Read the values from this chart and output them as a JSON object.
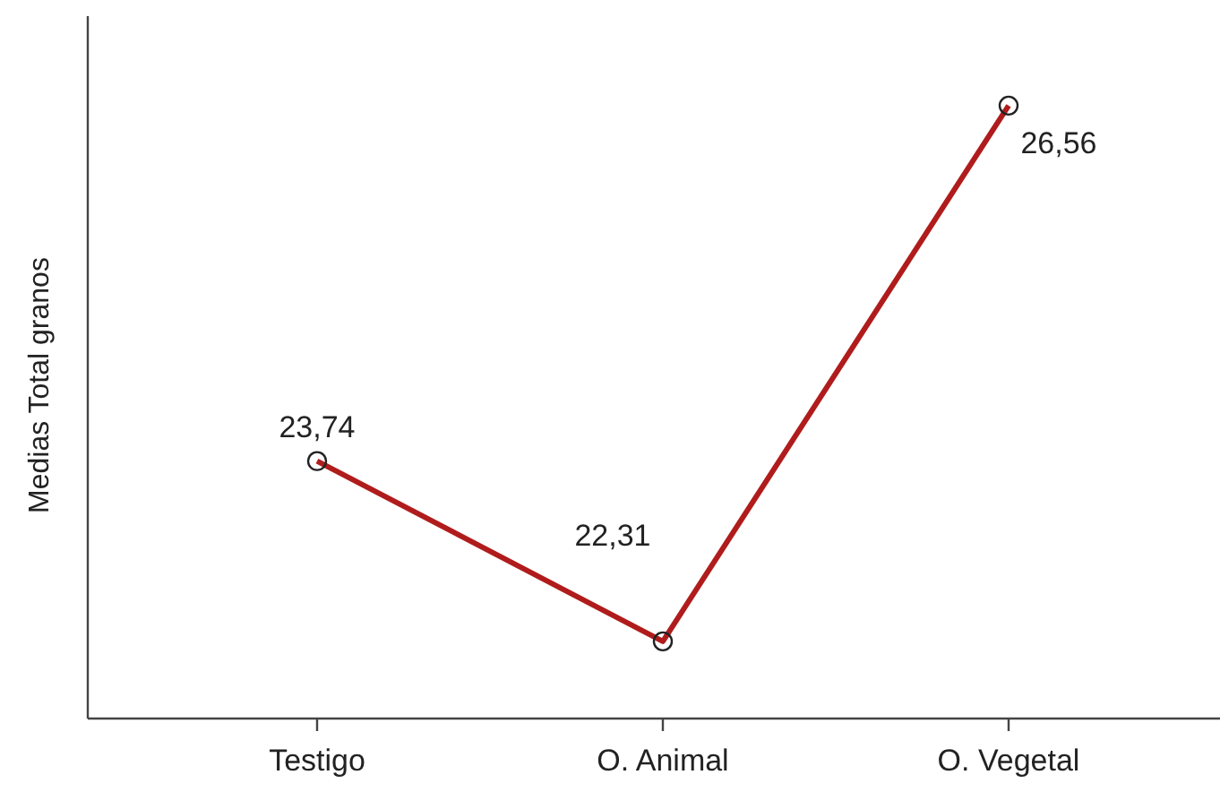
{
  "chart_data": {
    "type": "line",
    "ylabel": "Medias Total granos",
    "categories": [
      "Testigo",
      "O. Animal",
      "O. Vegetal"
    ],
    "series": [
      {
        "color": "#b01c1c",
        "values": [
          23.74,
          22.31,
          26.56
        ],
        "value_labels": [
          "23,74",
          "22,31",
          "26,56"
        ]
      }
    ],
    "marker": "circle",
    "line_style": "solid",
    "tick_labels": "x"
  }
}
